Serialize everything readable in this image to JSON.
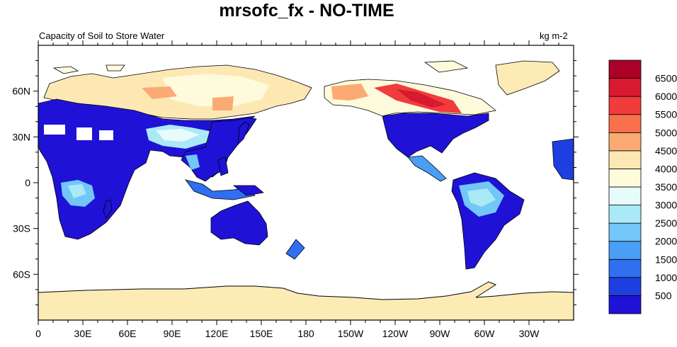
{
  "header": {
    "title": "mrsofc_fx - NO-TIME",
    "left_subtitle": "Capacity of Soil to Store Water",
    "right_subtitle": "kg m-2"
  },
  "map_data": {
    "projection": "cylindrical-equidistant",
    "lon_range": [
      0,
      360
    ],
    "lat_range": [
      -90,
      90
    ],
    "ocean_color": "#ffffff",
    "antarctica_color": "#fdebb6",
    "x_tick_labels": [
      "0",
      "30E",
      "60E",
      "90E",
      "120E",
      "150E",
      "180",
      "150W",
      "120W",
      "90W",
      "60W",
      "30W"
    ],
    "y_tick_labels": [
      "60N",
      "30N",
      "0",
      "30S",
      "60S"
    ],
    "y_tick_values": [
      60,
      30,
      0,
      -30,
      -60
    ]
  },
  "colorbar": {
    "labels": [
      "500",
      "1000",
      "1500",
      "2000",
      "2500",
      "3000",
      "3500",
      "4000",
      "4500",
      "5000",
      "5500",
      "6000",
      "6500"
    ],
    "colors": [
      "#1f12d6",
      "#1e3fe0",
      "#2f6ff0",
      "#4a9ef5",
      "#73c6f8",
      "#a9eaf6",
      "#e8fbfb",
      "#fdfbdc",
      "#fde8b4",
      "#fcaa74",
      "#f9704c",
      "#f03c3c",
      "#d81a30",
      "#ab0028"
    ]
  }
}
